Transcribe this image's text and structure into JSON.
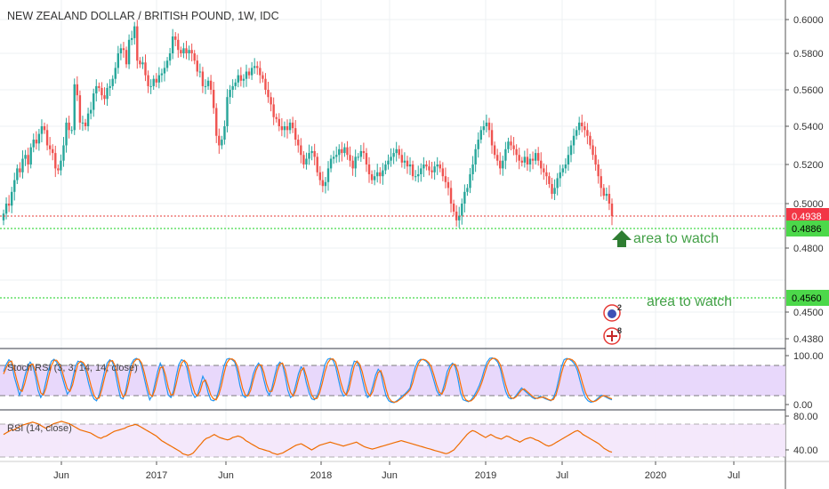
{
  "chart_data": [
    {
      "type": "candlestick",
      "title": "NEW ZEALAND DOLLAR / BRITISH POUND, 1W, IDC",
      "x_ticks": [
        "Jun",
        "2017",
        "Jun",
        "2018",
        "Jun",
        "2019",
        "Jul",
        "2020",
        "Jul"
      ],
      "y_ticks": [
        "0.6000",
        "0.5800",
        "0.5600",
        "0.5400",
        "0.5200",
        "0.5000",
        "0.4800",
        "0.4500",
        "0.4380"
      ],
      "ylim": [
        0.4325,
        0.6075
      ],
      "last_price": "0.4938",
      "price_levels": [
        {
          "value": 0.4886,
          "label": "0.4886",
          "annotation": "area to watch"
        },
        {
          "value": 0.456,
          "label": "0.4560",
          "annotation": "area to watch"
        }
      ],
      "close_series": [
        0.495,
        0.5,
        0.499,
        0.506,
        0.512,
        0.518,
        0.516,
        0.523,
        0.525,
        0.52,
        0.529,
        0.533,
        0.531,
        0.536,
        0.54,
        0.538,
        0.53,
        0.528,
        0.526,
        0.518,
        0.517,
        0.522,
        0.53,
        0.542,
        0.538,
        0.538,
        0.563,
        0.557,
        0.542,
        0.542,
        0.54,
        0.547,
        0.549,
        0.558,
        0.562,
        0.561,
        0.557,
        0.555,
        0.561,
        0.562,
        0.566,
        0.572,
        0.58,
        0.583,
        0.582,
        0.574,
        0.588,
        0.589,
        0.596,
        0.576,
        0.574,
        0.575,
        0.568,
        0.562,
        0.562,
        0.566,
        0.564,
        0.568,
        0.569,
        0.572,
        0.576,
        0.58,
        0.59,
        0.588,
        0.582,
        0.58,
        0.583,
        0.58,
        0.582,
        0.58,
        0.576,
        0.57,
        0.57,
        0.562,
        0.562,
        0.565,
        0.56,
        0.55,
        0.535,
        0.53,
        0.533,
        0.54,
        0.556,
        0.56,
        0.562,
        0.564,
        0.568,
        0.565,
        0.566,
        0.57,
        0.568,
        0.572,
        0.573,
        0.572,
        0.568,
        0.566,
        0.56,
        0.556,
        0.552,
        0.545,
        0.544,
        0.54,
        0.538,
        0.54,
        0.538,
        0.542,
        0.539,
        0.533,
        0.53,
        0.525,
        0.52,
        0.523,
        0.526,
        0.527,
        0.524,
        0.516,
        0.512,
        0.509,
        0.511,
        0.518,
        0.523,
        0.524,
        0.525,
        0.528,
        0.526,
        0.529,
        0.525,
        0.522,
        0.518,
        0.524,
        0.524,
        0.527,
        0.526,
        0.52,
        0.515,
        0.512,
        0.514,
        0.516,
        0.514,
        0.517,
        0.52,
        0.522,
        0.524,
        0.526,
        0.528,
        0.525,
        0.521,
        0.522,
        0.519,
        0.52,
        0.514,
        0.514,
        0.515,
        0.518,
        0.52,
        0.519,
        0.517,
        0.516,
        0.519,
        0.52,
        0.518,
        0.514,
        0.511,
        0.508,
        0.5,
        0.496,
        0.492,
        0.494,
        0.5,
        0.506,
        0.508,
        0.515,
        0.52,
        0.528,
        0.533,
        0.538,
        0.54,
        0.542,
        0.538,
        0.53,
        0.525,
        0.522,
        0.518,
        0.522,
        0.528,
        0.532,
        0.53,
        0.528,
        0.525,
        0.522,
        0.521,
        0.524,
        0.52,
        0.523,
        0.522,
        0.526,
        0.522,
        0.518,
        0.516,
        0.514,
        0.51,
        0.505,
        0.508,
        0.513,
        0.516,
        0.518,
        0.52,
        0.525,
        0.53,
        0.535,
        0.538,
        0.542,
        0.54,
        0.538,
        0.535,
        0.53,
        0.525,
        0.52,
        0.514,
        0.508,
        0.504,
        0.505,
        0.5,
        0.4938
      ],
      "low_marker": {
        "value": 0.4886,
        "x": 0.5
      }
    },
    {
      "type": "line",
      "title": "Stoch RSI (3, 3, 14, 14, close)",
      "y_ticks": [
        "100.00",
        "0.00"
      ],
      "ylim": [
        0,
        100
      ],
      "bands": [
        20,
        80
      ],
      "series": [
        {
          "values": [
            70,
            85,
            95,
            90,
            60,
            40,
            20,
            35,
            60,
            80,
            90,
            82,
            60,
            30,
            15,
            25,
            50,
            75,
            92,
            96,
            90,
            80,
            60,
            40,
            22,
            30,
            55,
            80,
            92,
            90,
            85,
            70,
            45,
            25,
            12,
            8,
            20,
            45,
            70,
            88,
            95,
            90,
            70,
            40,
            15,
            12,
            30,
            60,
            85,
            95,
            98,
            95,
            80,
            55,
            30,
            10,
            20,
            45,
            70,
            88,
            75,
            45,
            20,
            15,
            30,
            60,
            85,
            95,
            92,
            78,
            50,
            25,
            15,
            20,
            40,
            60,
            48,
            25,
            10,
            8,
            12,
            30,
            55,
            82,
            96,
            98,
            95,
            90,
            70,
            40,
            20,
            15,
            22,
            40,
            65,
            80,
            88,
            78,
            52,
            30,
            20,
            35,
            60,
            82,
            90,
            85,
            60,
            30,
            15,
            20,
            42,
            65,
            80,
            72,
            45,
            25,
            12,
            10,
            18,
            35,
            60,
            85,
            96,
            98,
            94,
            80,
            55,
            30,
            18,
            22,
            45,
            75,
            92,
            90,
            80,
            55,
            30,
            15,
            20,
            40,
            62,
            75,
            68,
            40,
            18,
            8,
            5,
            4,
            8,
            12,
            18,
            22,
            28,
            35,
            60,
            80,
            92,
            96,
            95,
            92,
            85,
            70,
            50,
            30,
            20,
            25,
            45,
            70,
            82,
            88,
            80,
            55,
            25,
            10,
            8,
            6,
            10,
            18,
            28,
            40,
            55,
            75,
            90,
            98,
            99,
            96,
            90,
            75,
            50,
            28,
            15,
            12,
            14,
            20,
            28,
            35,
            30,
            25,
            20,
            15,
            12,
            14,
            18,
            15,
            12,
            10,
            8,
            15,
            30,
            55,
            80,
            95,
            98,
            96,
            92,
            85,
            72,
            50,
            30,
            15,
            8,
            5,
            6,
            10,
            15,
            20,
            18,
            15,
            12,
            10
          ]
        },
        {
          "values": [
            65,
            78,
            90,
            92,
            75,
            52,
            32,
            28,
            45,
            68,
            84,
            86,
            72,
            48,
            25,
            20,
            35,
            60,
            82,
            94,
            94,
            86,
            72,
            52,
            34,
            28,
            42,
            66,
            86,
            92,
            89,
            80,
            60,
            38,
            20,
            12,
            14,
            32,
            56,
            78,
            92,
            93,
            82,
            58,
            30,
            16,
            22,
            44,
            72,
            90,
            96,
            96,
            88,
            68,
            44,
            22,
            17,
            32,
            56,
            78,
            80,
            62,
            36,
            20,
            22,
            44,
            70,
            88,
            94,
            88,
            68,
            42,
            24,
            18,
            28,
            48,
            52,
            38,
            20,
            12,
            10,
            20,
            40,
            66,
            88,
            96,
            97,
            93,
            82,
            58,
            34,
            20,
            18,
            30,
            52,
            72,
            84,
            84,
            68,
            44,
            28,
            28,
            46,
            70,
            86,
            88,
            74,
            48,
            26,
            18,
            30,
            52,
            72,
            78,
            60,
            38,
            20,
            12,
            13,
            25,
            46,
            70,
            88,
            96,
            97,
            90,
            70,
            46,
            28,
            20,
            32,
            58,
            82,
            92,
            86,
            70,
            46,
            26,
            18,
            28,
            50,
            68,
            72,
            56,
            32,
            14,
            7,
            5,
            6,
            10,
            14,
            20,
            25,
            31,
            46,
            68,
            85,
            94,
            96,
            94,
            89,
            80,
            62,
            42,
            26,
            22,
            34,
            56,
            75,
            85,
            85,
            70,
            44,
            20,
            10,
            7,
            8,
            13,
            22,
            32,
            46,
            64,
            82,
            93,
            98,
            98,
            94,
            84,
            64,
            42,
            24,
            14,
            13,
            17,
            24,
            31,
            33,
            28,
            23,
            18,
            14,
            13,
            15,
            16,
            14,
            11,
            9,
            11,
            22,
            42,
            66,
            86,
            96,
            97,
            95,
            90,
            80,
            64,
            44,
            26,
            14,
            8,
            6,
            8,
            12,
            17,
            19,
            17,
            14,
            12
          ]
        }
      ]
    },
    {
      "type": "line",
      "title": "RSI (14, close)",
      "y_ticks": [
        "80.00",
        "40.00"
      ],
      "ylim": [
        25,
        85
      ],
      "bands": [
        30,
        70
      ],
      "series": [
        {
          "values": [
            60,
            62,
            64,
            66,
            66,
            68,
            70,
            72,
            73,
            74,
            75,
            76,
            75,
            74,
            72,
            70,
            68,
            70,
            72,
            74,
            75,
            76,
            77,
            76,
            75,
            74,
            72,
            70,
            68,
            66,
            65,
            64,
            63,
            62,
            60,
            58,
            56,
            55,
            57,
            58,
            60,
            62,
            64,
            65,
            66,
            67,
            68,
            70,
            71,
            72,
            73,
            72,
            70,
            68,
            66,
            64,
            62,
            60,
            58,
            55,
            52,
            50,
            48,
            46,
            44,
            42,
            40,
            38,
            35,
            34,
            33,
            34,
            36,
            40,
            44,
            48,
            52,
            55,
            56,
            58,
            60,
            58,
            56,
            55,
            54,
            53,
            54,
            56,
            57,
            58,
            57,
            55,
            52,
            50,
            48,
            46,
            44,
            42,
            41,
            40,
            39,
            38,
            36,
            35,
            34,
            35,
            36,
            38,
            40,
            42,
            44,
            46,
            47,
            48,
            46,
            44,
            42,
            40,
            42,
            44,
            46,
            47,
            48,
            49,
            50,
            49,
            48,
            47,
            46,
            45,
            46,
            47,
            48,
            49,
            50,
            48,
            46,
            44,
            43,
            42,
            41,
            42,
            43,
            44,
            45,
            46,
            47,
            48,
            49,
            50,
            51,
            52,
            51,
            50,
            49,
            48,
            47,
            46,
            45,
            44,
            43,
            42,
            41,
            40,
            39,
            38,
            37,
            36,
            35,
            36,
            38,
            40,
            44,
            48,
            52,
            56,
            60,
            63,
            65,
            64,
            62,
            60,
            58,
            56,
            58,
            60,
            58,
            56,
            55,
            54,
            56,
            58,
            57,
            55,
            53,
            52,
            50,
            52,
            54,
            55,
            56,
            55,
            53,
            52,
            50,
            48,
            46,
            45,
            46,
            48,
            50,
            52,
            54,
            56,
            58,
            60,
            62,
            64,
            65,
            63,
            60,
            58,
            56,
            54,
            52,
            50,
            48,
            45,
            42,
            40,
            38,
            37
          ]
        }
      ]
    }
  ],
  "icons": [
    "calendar-event-icon",
    "flag-event-icon"
  ],
  "event_badges": [
    "2",
    "8"
  ]
}
